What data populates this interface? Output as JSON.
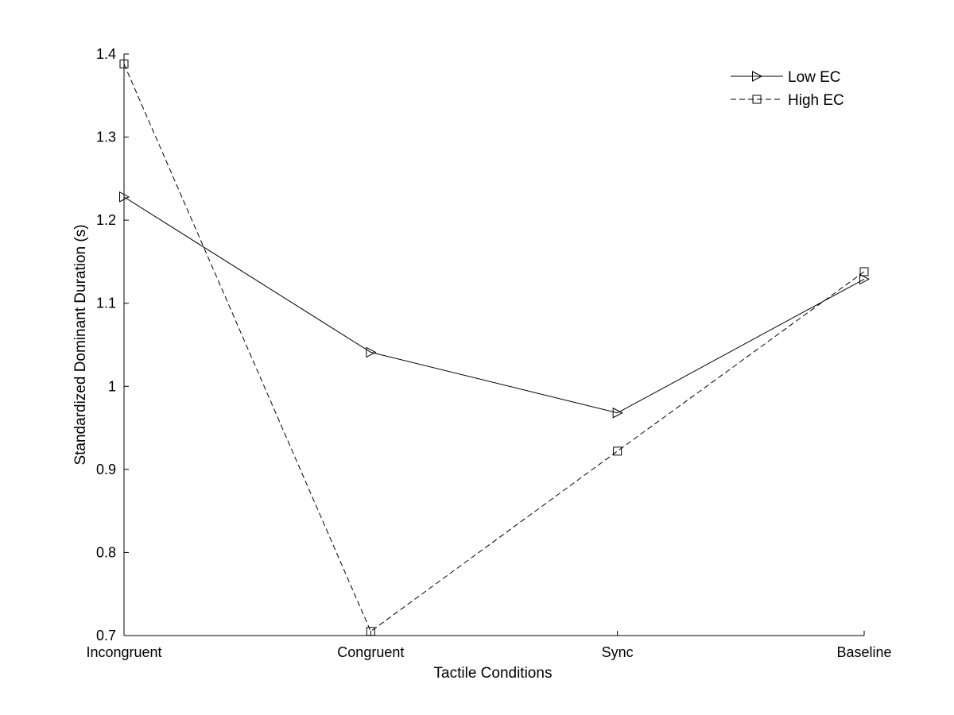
{
  "chart_data": {
    "type": "line",
    "title": "",
    "xlabel": "Tactile Conditions",
    "ylabel": "Standardized Dominant Duration (s)",
    "categories": [
      "Incongruent",
      "Congruent",
      "Sync",
      "Baseline"
    ],
    "ylim": [
      0.7,
      1.4
    ],
    "yticks": [
      "0.7",
      "0.8",
      "0.9",
      "1",
      "1.1",
      "1.2",
      "1.3",
      "1.4"
    ],
    "grid": false,
    "legend_position": "top-right",
    "series": [
      {
        "name": "Low EC",
        "values": [
          1.228,
          1.041,
          0.968,
          1.129
        ],
        "marker": "triangle-right",
        "line_style": "solid",
        "color": "#000000"
      },
      {
        "name": "High EC",
        "values": [
          1.388,
          0.705,
          0.922,
          1.138
        ],
        "marker": "square",
        "line_style": "dashed",
        "color": "#000000"
      }
    ]
  }
}
